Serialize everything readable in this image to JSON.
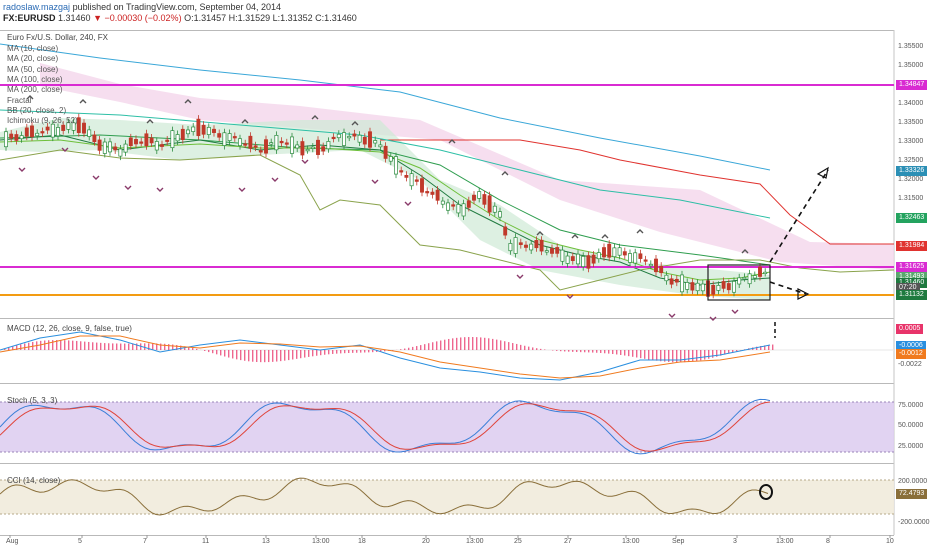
{
  "header": {
    "author": "radoslaw.mazgaj",
    "published_text": "published on TradingView.com, September 04, 2014",
    "symbol": "FX:EURUSD",
    "last": "1.31460",
    "change": "▼ −0.00030 (−0.02%)",
    "ohlc": "O:1.31457 H:1.31529 L:1.31352 C:1.31460"
  },
  "main_panel": {
    "title": "Euro Fx/U.S. Dollar, 240, FX",
    "legend": [
      "MA (10, close)",
      "MA (20, close)",
      "MA (50, close)",
      "MA (100, close)",
      "MA (200, close)",
      "Fractal",
      "BB (20, close, 2)",
      "Ichimoku (9, 26, 52)"
    ],
    "y_ticks": [
      "1.35500",
      "1.35000",
      "1.34500",
      "1.34000",
      "1.33500",
      "1.33000",
      "1.32500",
      "1.32000",
      "1.31500",
      "1.31000"
    ],
    "price_labels": [
      {
        "text": "1.34847",
        "color": "#d92bd2"
      },
      {
        "text": "1.33326",
        "color": "#2b8fb5"
      },
      {
        "text": "1.32463",
        "color": "#23a35f"
      },
      {
        "text": "1.31984",
        "color": "#e0332f"
      },
      {
        "text": "1.31625",
        "color": "#d92bd2"
      },
      {
        "text": "1.31493",
        "color": "#5aa86e"
      },
      {
        "text": "1.31460",
        "color": "#1f7a3f"
      },
      {
        "text": "07:20",
        "color": "#555555"
      },
      {
        "text": "1.31132",
        "color": "#1f7a3f"
      }
    ]
  },
  "macd_panel": {
    "title": "MACD (12, 26, close, 9, false, true)",
    "y_ticks": [
      "-0.0022"
    ],
    "labels": [
      {
        "text": "0.0005",
        "color": "#e8346a"
      },
      {
        "text": "-0.0006",
        "color": "#2a8fdf"
      },
      {
        "text": "-0.0012",
        "color": "#f07a1e"
      }
    ]
  },
  "stoch_panel": {
    "title": "Stoch (5, 3, 3)",
    "y_ticks": [
      "75.0000",
      "50.0000",
      "25.0000"
    ]
  },
  "cci_panel": {
    "title": "CCI (14, close)",
    "y_ticks": [
      "200.0000",
      "-200.0000"
    ],
    "value_label": "72.4793"
  },
  "time_axis": [
    "Aug",
    "5",
    "7",
    "11",
    "13",
    "13:00",
    "18",
    "20",
    "13:00",
    "25",
    "27",
    "13:00",
    "Sep",
    "3",
    "13:00",
    "8",
    "10"
  ],
  "colors": {
    "magenta_line": "#d92bd2",
    "orange_line": "#f39c12",
    "bull_candle": "#2b8a3e",
    "bear_candle": "#c0392b",
    "stoch_fill": "#dccbf0"
  }
}
